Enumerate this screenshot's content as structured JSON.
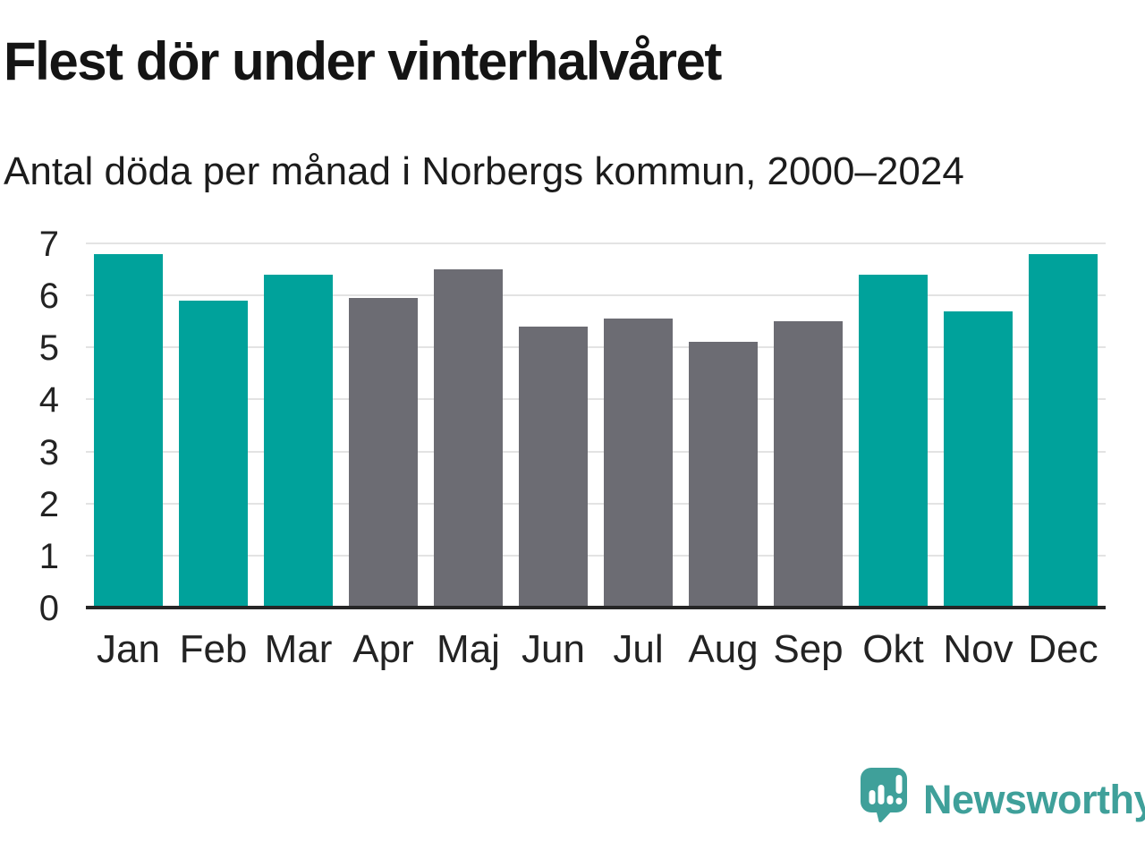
{
  "header": {
    "title": "Flest dör under vinterhalvåret",
    "subtitle": "Antal döda per månad i Norbergs kommun, 2000–2024"
  },
  "chart_data": {
    "type": "bar",
    "title": "Flest dör under vinterhalvåret",
    "subtitle": "Antal döda per månad i Norbergs kommun, 2000–2024",
    "categories": [
      "Jan",
      "Feb",
      "Mar",
      "Apr",
      "Maj",
      "Jun",
      "Jul",
      "Aug",
      "Sep",
      "Okt",
      "Nov",
      "Dec"
    ],
    "values": [
      6.8,
      5.9,
      6.4,
      5.95,
      6.5,
      5.4,
      5.55,
      5.1,
      5.5,
      6.4,
      5.7,
      6.8
    ],
    "groups": [
      "winter",
      "winter",
      "winter",
      "summer",
      "summer",
      "summer",
      "summer",
      "summer",
      "summer",
      "winter",
      "winter",
      "winter"
    ],
    "group_colors": {
      "winter": "#00a29b",
      "summer": "#6c6c73"
    },
    "xlabel": "",
    "ylabel": "",
    "ylim": [
      0,
      7
    ],
    "yticks": [
      0,
      1,
      2,
      3,
      4,
      5,
      6,
      7
    ],
    "grid": true,
    "legend": false,
    "gridline_color": "#e3e3e3",
    "axis_color": "#262626"
  },
  "branding": {
    "name": "Newsworthy",
    "icon": "newsworthy-speech-bubble-bar-chart-icon",
    "color": "#3fa09a"
  }
}
